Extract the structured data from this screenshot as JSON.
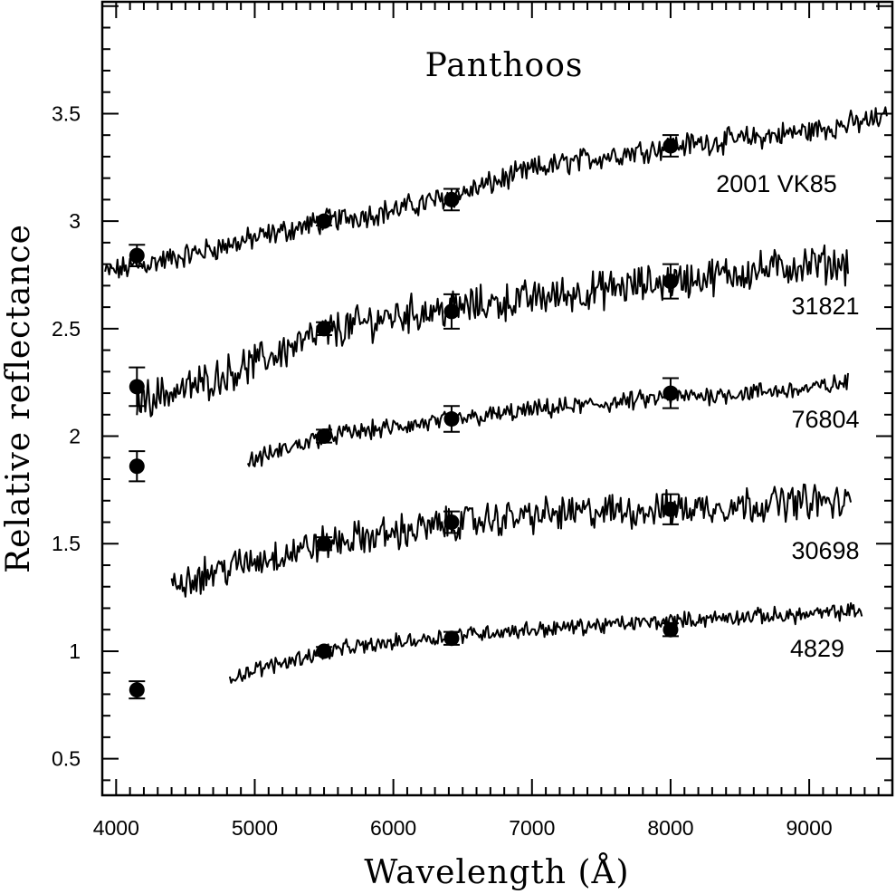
{
  "chart_data": {
    "type": "line",
    "title": "Panthoos",
    "xlabel": "Wavelength (Å)",
    "ylabel": "Relative reflectance",
    "xlim": [
      3900,
      9600
    ],
    "ylim": [
      0.33,
      4.02
    ],
    "x_ticks": [
      "4000",
      "5000",
      "6000",
      "7000",
      "8000",
      "9000"
    ],
    "y_ticks": [
      "0.5",
      "1",
      "1.5",
      "2",
      "2.5",
      "3",
      "3.5"
    ],
    "grid": false,
    "legend": "none",
    "series": [
      {
        "name": "2001 VK85",
        "x_range": [
          3920,
          9560
        ],
        "trend": [
          [
            3920,
            2.76
          ],
          [
            4500,
            2.84
          ],
          [
            5000,
            2.92
          ],
          [
            5500,
            3.0
          ],
          [
            6000,
            3.05
          ],
          [
            6500,
            3.13
          ],
          [
            7000,
            3.24
          ],
          [
            7500,
            3.3
          ],
          [
            8000,
            3.35
          ],
          [
            8500,
            3.38
          ],
          [
            9000,
            3.42
          ],
          [
            9560,
            3.48
          ]
        ],
        "noise": 0.045,
        "points": [
          {
            "x": 4150,
            "y": 2.84,
            "err": 0.05
          },
          {
            "x": 5500,
            "y": 3.0,
            "err": 0.02
          },
          {
            "x": 6420,
            "y": 3.1,
            "err": 0.05
          },
          {
            "x": 8000,
            "y": 3.35,
            "err": 0.05
          }
        ]
      },
      {
        "name": "31821",
        "x_range": [
          4150,
          9280
        ],
        "trend": [
          [
            4150,
            2.17
          ],
          [
            4500,
            2.22
          ],
          [
            5000,
            2.34
          ],
          [
            5500,
            2.48
          ],
          [
            6000,
            2.56
          ],
          [
            6500,
            2.6
          ],
          [
            7000,
            2.64
          ],
          [
            7500,
            2.68
          ],
          [
            8000,
            2.72
          ],
          [
            8500,
            2.76
          ],
          [
            9000,
            2.8
          ],
          [
            9280,
            2.8
          ]
        ],
        "noise": 0.07,
        "points": [
          {
            "x": 4150,
            "y": 2.23,
            "err": 0.09
          },
          {
            "x": 5500,
            "y": 2.5,
            "err": 0.03
          },
          {
            "x": 6420,
            "y": 2.58,
            "err": 0.08
          },
          {
            "x": 8000,
            "y": 2.72,
            "err": 0.08
          }
        ]
      },
      {
        "name": "76804",
        "x_range": [
          4950,
          9280
        ],
        "trend": [
          [
            4950,
            1.88
          ],
          [
            5500,
            2.0
          ],
          [
            6000,
            2.04
          ],
          [
            6500,
            2.08
          ],
          [
            7000,
            2.12
          ],
          [
            7500,
            2.15
          ],
          [
            8000,
            2.18
          ],
          [
            8500,
            2.2
          ],
          [
            9000,
            2.22
          ],
          [
            9280,
            2.25
          ]
        ],
        "noise": 0.035,
        "points": [
          {
            "x": 5500,
            "y": 2.0,
            "err": 0.03
          },
          {
            "x": 6420,
            "y": 2.08,
            "err": 0.06
          },
          {
            "x": 8000,
            "y": 2.2,
            "err": 0.07
          }
        ]
      },
      {
        "name": "30698",
        "x_range": [
          4400,
          9300
        ],
        "trend": [
          [
            4400,
            1.32
          ],
          [
            5000,
            1.42
          ],
          [
            5500,
            1.5
          ],
          [
            6000,
            1.55
          ],
          [
            6500,
            1.6
          ],
          [
            7000,
            1.63
          ],
          [
            7500,
            1.65
          ],
          [
            8000,
            1.66
          ],
          [
            8500,
            1.68
          ],
          [
            9000,
            1.7
          ],
          [
            9300,
            1.68
          ]
        ],
        "noise": 0.065,
        "points": [
          {
            "x": 5500,
            "y": 1.5,
            "err": 0.03
          },
          {
            "x": 6420,
            "y": 1.6,
            "err": 0.05
          },
          {
            "x": 8000,
            "y": 1.66,
            "err": 0.07
          }
        ]
      },
      {
        "name": "4829",
        "x_range": [
          4820,
          9380
        ],
        "trend": [
          [
            4820,
            0.88
          ],
          [
            5500,
            1.0
          ],
          [
            6000,
            1.04
          ],
          [
            6500,
            1.08
          ],
          [
            7000,
            1.1
          ],
          [
            7500,
            1.12
          ],
          [
            8000,
            1.14
          ],
          [
            8500,
            1.16
          ],
          [
            9000,
            1.17
          ],
          [
            9380,
            1.19
          ]
        ],
        "noise": 0.03,
        "points": [
          {
            "x": 5500,
            "y": 1.0,
            "err": 0.02
          },
          {
            "x": 6420,
            "y": 1.06,
            "err": 0.03
          },
          {
            "x": 8000,
            "y": 1.1,
            "err": 0.03
          }
        ]
      }
    ],
    "extra_points": [
      {
        "x": 4150,
        "y": 1.86,
        "err": 0.07
      },
      {
        "x": 4150,
        "y": 0.82,
        "err": 0.04
      }
    ]
  }
}
